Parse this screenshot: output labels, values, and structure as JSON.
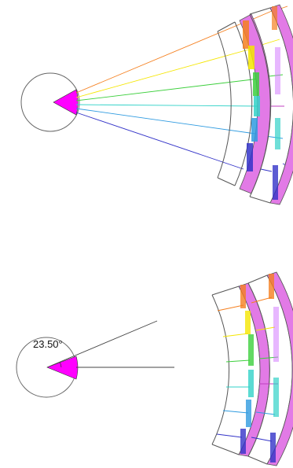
{
  "diagram": {
    "angle_label": "23.50°"
  },
  "palette": {
    "wedge": "#ff00ff",
    "outline": "#444444",
    "ray_colors": [
      "#f58020",
      "#f5e600",
      "#3ccf3c",
      "#32d2c8",
      "#2f9be0",
      "#3333c8"
    ],
    "spectrum_fill": "#e27ae6"
  }
}
